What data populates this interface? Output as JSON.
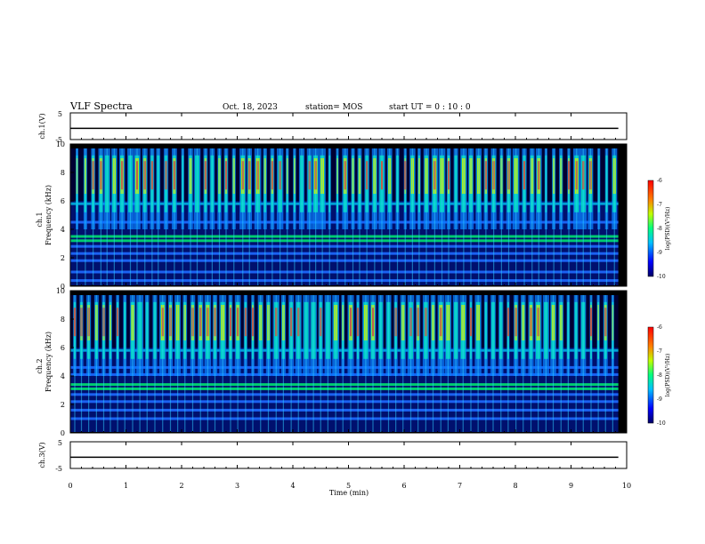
{
  "header": {
    "title": "VLF Spectra",
    "date": "Oct. 18, 2023",
    "station": "station= MOS",
    "start": "start  UT =   0  : 10 : 0"
  },
  "chart_data": [
    {
      "type": "line",
      "name": "ch1-voltage",
      "ylabel": "ch.1(V)",
      "ylim": [
        -5,
        5
      ],
      "yticks": [
        "5",
        "-5"
      ],
      "x": [
        0,
        9.85
      ],
      "y": [
        -0.8,
        -0.8
      ]
    },
    {
      "type": "heatmap",
      "name": "ch1-spectrogram",
      "ylabel": "ch.1",
      "ylabel2": "Frequency (kHz)",
      "ylim": [
        0,
        10
      ],
      "yticks": [
        "0",
        "2",
        "4",
        "6",
        "8",
        "10"
      ],
      "xlim": [
        0,
        9.85
      ],
      "colorbar": {
        "label": "log(PSD)(V²/Hz)",
        "range": [
          -10,
          -6
        ],
        "ticks": [
          "-6",
          "-7",
          "-8",
          "-9",
          "-10"
        ]
      },
      "bursts": [
        0.12,
        0.27,
        0.41,
        0.55,
        0.66,
        0.79,
        0.93,
        1.08,
        1.2,
        1.34,
        1.47,
        1.58,
        1.72,
        1.87,
        2.02,
        2.16,
        2.28,
        2.43,
        2.55,
        2.68,
        2.8,
        2.94,
        3.1,
        3.22,
        3.37,
        3.5,
        3.63,
        3.77,
        3.9,
        4.03,
        4.16,
        4.3,
        4.41,
        4.53,
        4.66,
        4.8,
        4.94,
        5.08,
        5.2,
        5.33,
        5.47,
        5.6,
        5.74,
        5.88,
        6.02,
        6.15,
        6.27,
        6.4,
        6.55,
        6.68,
        6.8,
        6.93,
        7.07,
        7.2,
        7.34,
        7.47,
        7.61,
        7.75,
        7.88,
        8.01,
        8.16,
        8.3,
        8.42,
        8.55,
        8.69,
        8.82,
        8.96,
        9.1,
        9.22,
        9.35,
        9.5,
        9.64,
        9.78
      ],
      "hum_lines_khz": [
        0.4,
        1.0,
        1.8,
        2.3,
        2.8,
        3.2,
        3.5,
        4.5,
        5.8
      ]
    },
    {
      "type": "heatmap",
      "name": "ch2-spectrogram",
      "ylabel": "ch.2",
      "ylabel2": "Frequency (kHz)",
      "ylim": [
        0,
        10
      ],
      "yticks": [
        "0",
        "2",
        "4",
        "6",
        "8",
        "10"
      ],
      "xlim": [
        0,
        9.85
      ],
      "colorbar": {
        "label": "log(PSD)(V²/Hz)",
        "range": [
          -10,
          -6
        ],
        "ticks": [
          "-6",
          "-7",
          "-8",
          "-9",
          "-10"
        ]
      },
      "bursts": [
        0.08,
        0.2,
        0.33,
        0.47,
        0.6,
        0.72,
        0.85,
        0.98,
        1.12,
        1.25,
        1.38,
        1.52,
        1.66,
        1.8,
        1.93,
        2.06,
        2.2,
        2.34,
        2.47,
        2.6,
        2.74,
        2.88,
        3.01,
        3.15,
        3.28,
        3.42,
        3.56,
        3.7,
        3.83,
        3.97,
        4.1,
        4.24,
        4.37,
        4.5,
        4.63,
        4.77,
        4.9,
        5.04,
        5.17,
        5.31,
        5.44,
        5.58,
        5.72,
        5.85,
        5.98,
        6.12,
        6.25,
        6.39,
        6.52,
        6.66,
        6.79,
        6.93,
        7.06,
        7.2,
        7.33,
        7.47,
        7.6,
        7.74,
        7.87,
        8.01,
        8.14,
        8.28,
        8.41,
        8.55,
        8.68,
        8.82,
        8.95,
        9.09,
        9.22,
        9.36,
        9.49,
        9.62,
        9.75
      ],
      "hum_lines_khz": [
        1.0,
        1.6,
        2.2,
        2.7,
        3.1,
        3.4,
        4.1,
        4.6,
        5.8
      ]
    },
    {
      "type": "line",
      "name": "ch3-voltage",
      "ylabel": "ch.3(V)",
      "ylim": [
        -5,
        5
      ],
      "yticks": [
        "5",
        "-5"
      ],
      "x": [
        0,
        9.85
      ],
      "y": [
        -0.8,
        -0.8
      ]
    }
  ],
  "xaxis": {
    "label": "Time (min)",
    "ticks": [
      "0",
      "1",
      "2",
      "3",
      "4",
      "5",
      "6",
      "7",
      "8",
      "9",
      "10"
    ],
    "xlim": [
      0,
      10
    ]
  },
  "colors": {
    "background": "#000000",
    "low": "#0000aa",
    "mid": "#00c8ff",
    "high": "#ff0000"
  }
}
